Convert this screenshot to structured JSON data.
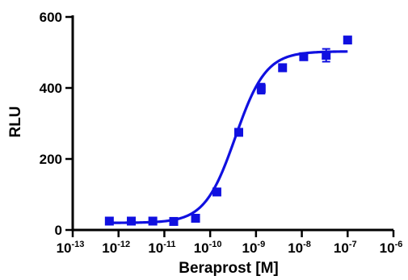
{
  "chart_data": {
    "type": "scatter",
    "title": "",
    "xlabel": "Beraprost [M]",
    "ylabel": "RLU",
    "x_scale": "log",
    "xlim": [
      1e-13,
      1e-06
    ],
    "ylim": [
      0,
      600
    ],
    "x_ticks": [
      {
        "base": "10",
        "exp": "-13",
        "value": 1e-13
      },
      {
        "base": "10",
        "exp": "-12",
        "value": 1e-12
      },
      {
        "base": "10",
        "exp": "-11",
        "value": 1e-11
      },
      {
        "base": "10",
        "exp": "-10",
        "value": 1e-10
      },
      {
        "base": "10",
        "exp": "-9",
        "value": 1e-09
      },
      {
        "base": "10",
        "exp": "-8",
        "value": 1e-08
      },
      {
        "base": "10",
        "exp": "-7",
        "value": 1e-07
      },
      {
        "base": "10",
        "exp": "-6",
        "value": 1e-06
      }
    ],
    "y_ticks": [
      "0",
      "200",
      "400",
      "600"
    ],
    "y_tick_values": [
      0,
      200,
      400,
      600
    ],
    "grid": false,
    "legend": "none",
    "marker_color": "#1010e0",
    "points": [
      {
        "x": 6.3e-13,
        "y": 25,
        "err": 4
      },
      {
        "x": 1.9e-12,
        "y": 25,
        "err": 3
      },
      {
        "x": 5.6e-12,
        "y": 25,
        "err": 3
      },
      {
        "x": 1.6e-11,
        "y": 24,
        "err": 3
      },
      {
        "x": 4.8e-11,
        "y": 33,
        "err": 4
      },
      {
        "x": 1.4e-10,
        "y": 107,
        "err": 5
      },
      {
        "x": 4.2e-10,
        "y": 275,
        "err": 8
      },
      {
        "x": 1.3e-09,
        "y": 398,
        "err": 14
      },
      {
        "x": 3.8e-09,
        "y": 457,
        "err": 10
      },
      {
        "x": 1.1e-08,
        "y": 488,
        "err": 7
      },
      {
        "x": 3.4e-08,
        "y": 492,
        "err": 18
      },
      {
        "x": 1e-07,
        "y": 535,
        "err": 6
      }
    ],
    "fit": {
      "model": "sigmoidal dose-response",
      "bottom": 20,
      "top": 503,
      "log_ec50": -9.45,
      "hill": 1.3
    }
  }
}
